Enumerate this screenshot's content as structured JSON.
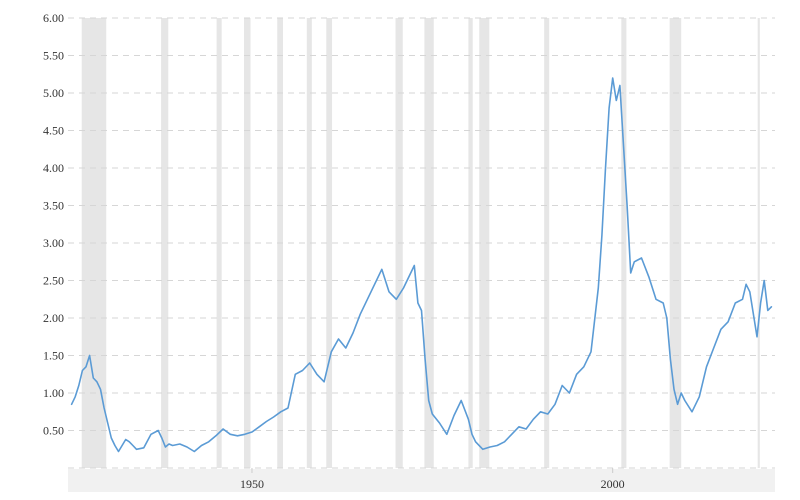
{
  "colors": {
    "series": "#5b9bd5",
    "recession": "#e6e6e6",
    "grid": "#d6d6d6"
  },
  "chart_data": {
    "type": "line",
    "title": "",
    "xlabel": "",
    "ylabel": "",
    "xlim": [
      1924.5,
      2022.5
    ],
    "ylim": [
      0,
      6
    ],
    "y_ticks": [
      {
        "value": 0.5,
        "label": "0.50"
      },
      {
        "value": 1.0,
        "label": "1.00"
      },
      {
        "value": 1.5,
        "label": "1.50"
      },
      {
        "value": 2.0,
        "label": "2.00"
      },
      {
        "value": 2.5,
        "label": "2.50"
      },
      {
        "value": 3.0,
        "label": "3.00"
      },
      {
        "value": 3.5,
        "label": "3.50"
      },
      {
        "value": 4.0,
        "label": "4.00"
      },
      {
        "value": 4.5,
        "label": "4.50"
      },
      {
        "value": 5.0,
        "label": "5.00"
      },
      {
        "value": 5.5,
        "label": "5.50"
      },
      {
        "value": 6.0,
        "label": "6.00"
      }
    ],
    "x_ticks": [
      {
        "value": 1950,
        "label": "1950"
      },
      {
        "value": 2000,
        "label": "2000"
      }
    ],
    "grid": true,
    "recessions": [
      [
        1926.4,
        1929.8
      ],
      [
        1937.4,
        1938.4
      ],
      [
        1945.1,
        1945.8
      ],
      [
        1948.9,
        1949.8
      ],
      [
        1953.5,
        1954.3
      ],
      [
        1957.6,
        1958.3
      ],
      [
        1960.3,
        1961.1
      ],
      [
        1969.9,
        1970.9
      ],
      [
        1973.9,
        1975.2
      ],
      [
        1980.0,
        1980.6
      ],
      [
        1981.5,
        1982.9
      ],
      [
        1990.5,
        1991.2
      ],
      [
        2001.2,
        2001.9
      ],
      [
        2007.9,
        2009.5
      ],
      [
        2020.1,
        2020.4
      ]
    ],
    "series": [
      {
        "x": [
          1925.0,
          1925.5,
          1926.0,
          1926.5,
          1927.0,
          1927.5,
          1928.0,
          1928.5,
          1929.0,
          1929.5,
          1930.0,
          1930.5,
          1931.0,
          1931.5,
          1932.0,
          1932.5,
          1933.0,
          1933.5,
          1934.0,
          1935.0,
          1936.0,
          1937.0,
          1937.5,
          1938.0,
          1938.5,
          1939.0,
          1940.0,
          1941.0,
          1942.0,
          1943.0,
          1944.0,
          1945.0,
          1946.0,
          1947.0,
          1948.0,
          1949.0,
          1950.0,
          1951.0,
          1952.0,
          1953.0,
          1954.0,
          1955.0,
          1956.0,
          1957.0,
          1958.0,
          1959.0,
          1960.0,
          1961.0,
          1962.0,
          1963.0,
          1964.0,
          1965.0,
          1966.0,
          1967.0,
          1968.0,
          1969.0,
          1970.0,
          1971.0,
          1972.0,
          1972.5,
          1973.0,
          1973.5,
          1974.0,
          1974.5,
          1975.0,
          1976.0,
          1977.0,
          1978.0,
          1979.0,
          1980.0,
          1980.5,
          1981.0,
          1982.0,
          1983.0,
          1984.0,
          1985.0,
          1986.0,
          1987.0,
          1988.0,
          1989.0,
          1990.0,
          1991.0,
          1992.0,
          1993.0,
          1994.0,
          1995.0,
          1996.0,
          1997.0,
          1998.0,
          1998.5,
          1999.0,
          1999.5,
          2000.0,
          2000.5,
          2001.0,
          2001.5,
          2002.0,
          2002.5,
          2003.0,
          2004.0,
          2005.0,
          2006.0,
          2007.0,
          2007.5,
          2008.0,
          2008.5,
          2009.0,
          2009.5,
          2010.0,
          2011.0,
          2012.0,
          2013.0,
          2014.0,
          2015.0,
          2016.0,
          2017.0,
          2018.0,
          2018.5,
          2019.0,
          2020.0,
          2020.5,
          2021.0,
          2021.5,
          2022.0
        ],
        "values": [
          0.85,
          0.95,
          1.1,
          1.3,
          1.35,
          1.5,
          1.2,
          1.15,
          1.05,
          0.8,
          0.6,
          0.4,
          0.3,
          0.22,
          0.3,
          0.38,
          0.35,
          0.3,
          0.25,
          0.27,
          0.45,
          0.5,
          0.4,
          0.28,
          0.32,
          0.3,
          0.32,
          0.28,
          0.22,
          0.3,
          0.35,
          0.43,
          0.52,
          0.45,
          0.43,
          0.45,
          0.48,
          0.55,
          0.62,
          0.68,
          0.75,
          0.8,
          1.25,
          1.3,
          1.4,
          1.25,
          1.15,
          1.55,
          1.72,
          1.6,
          1.8,
          2.05,
          2.25,
          2.45,
          2.65,
          2.35,
          2.25,
          2.4,
          2.6,
          2.7,
          2.2,
          2.1,
          1.45,
          0.9,
          0.72,
          0.6,
          0.45,
          0.7,
          0.9,
          0.65,
          0.45,
          0.35,
          0.25,
          0.28,
          0.3,
          0.35,
          0.45,
          0.55,
          0.52,
          0.65,
          0.75,
          0.72,
          0.85,
          1.1,
          1.0,
          1.25,
          1.35,
          1.55,
          2.4,
          3.1,
          4.0,
          4.8,
          5.2,
          4.9,
          5.1,
          4.3,
          3.5,
          2.6,
          2.75,
          2.8,
          2.55,
          2.25,
          2.2,
          2.0,
          1.45,
          1.05,
          0.85,
          1.0,
          0.9,
          0.75,
          0.95,
          1.35,
          1.6,
          1.85,
          1.95,
          2.2,
          2.25,
          2.45,
          2.35,
          1.75,
          2.2,
          2.5,
          2.1,
          2.15
        ]
      }
    ]
  }
}
